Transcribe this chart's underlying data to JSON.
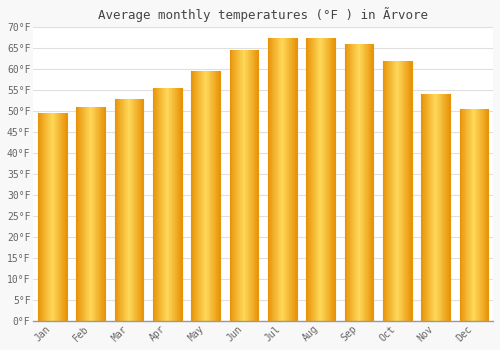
{
  "title": "Average monthly temperatures (°F ) in Ãrvore",
  "months": [
    "Jan",
    "Feb",
    "Mar",
    "Apr",
    "May",
    "Jun",
    "Jul",
    "Aug",
    "Sep",
    "Oct",
    "Nov",
    "Dec"
  ],
  "values": [
    49.5,
    51.0,
    53.0,
    55.5,
    59.5,
    64.5,
    67.5,
    67.5,
    66.0,
    62.0,
    54.0,
    50.5
  ],
  "bar_color_center": "#FFD966",
  "bar_color_edge": "#E8940A",
  "bar_color_main": "#FFAA00",
  "ylim": [
    0,
    70
  ],
  "yticks": [
    0,
    5,
    10,
    15,
    20,
    25,
    30,
    35,
    40,
    45,
    50,
    55,
    60,
    65,
    70
  ],
  "background_color": "#F8F8F8",
  "plot_bg_color": "#FFFFFF",
  "grid_color": "#E0E0E0",
  "title_fontsize": 9,
  "tick_fontsize": 7,
  "tick_color": "#666666",
  "font_family": "monospace"
}
